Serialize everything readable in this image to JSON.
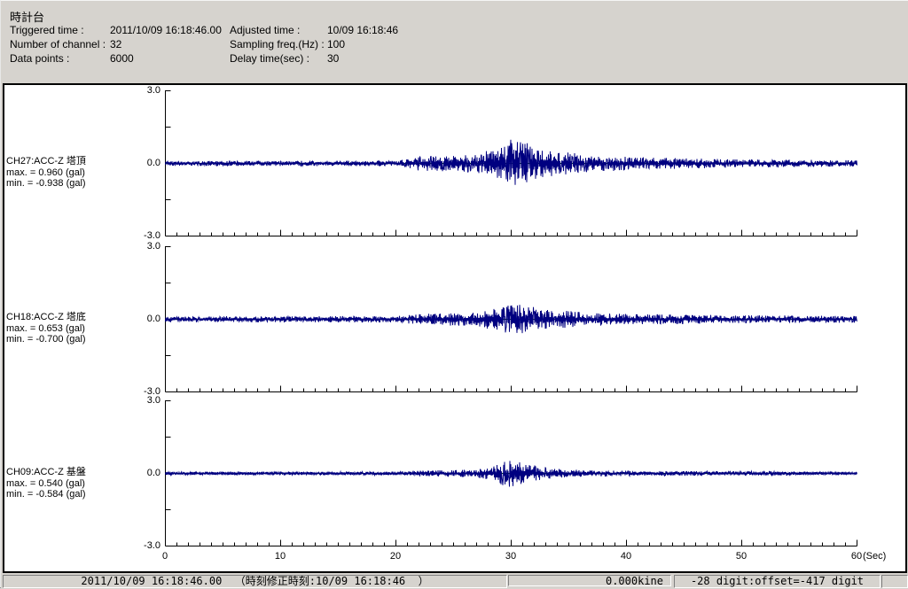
{
  "header": {
    "title": "時計台",
    "rows": [
      {
        "left_label": "Triggered time :",
        "left_value": "2011/10/09 16:18:46.00",
        "right_label": "Adjusted time :",
        "right_value": "10/09 16:18:46"
      },
      {
        "left_label": "Number of channel :",
        "left_value": "32",
        "right_label": "Sampling freq.(Hz) :",
        "right_value": "100"
      },
      {
        "left_label": "Data points :",
        "left_value": "6000",
        "right_label": "Delay time(sec) :",
        "right_value": "30"
      }
    ]
  },
  "chart_data": {
    "type": "line",
    "title": "",
    "xlabel": "(Sec)",
    "ylabel": "(gal)",
    "x_range": [
      0,
      60
    ],
    "x_ticks": [
      0,
      10,
      20,
      30,
      40,
      50,
      60
    ],
    "x_minor_tick_sec": 1,
    "ylim": [
      -3.0,
      3.0
    ],
    "y_tick_values": [
      3.0,
      1.5,
      0.0,
      -1.5,
      -3.0
    ],
    "y_tick_labels": [
      "3.0",
      "0.0",
      "-3.0"
    ],
    "sampling_freq_hz": 100,
    "duration_sec": 60,
    "grid": false,
    "legend_position": "none",
    "series": [
      {
        "channel": "CH27:ACC-Z 塔頂",
        "max_gal": 0.96,
        "min_gal": -0.938,
        "max_label": "max. = 0.960 (gal)",
        "min_label": "min. = -0.938 (gal)",
        "amplitude_envelope_gal": [
          [
            0,
            0.1
          ],
          [
            20,
            0.11
          ],
          [
            21,
            0.18
          ],
          [
            22,
            0.3
          ],
          [
            24,
            0.32
          ],
          [
            26,
            0.35
          ],
          [
            27.5,
            0.45
          ],
          [
            29,
            0.62
          ],
          [
            30,
            0.96
          ],
          [
            31,
            0.88
          ],
          [
            32,
            0.68
          ],
          [
            33,
            0.55
          ],
          [
            35,
            0.45
          ],
          [
            37,
            0.35
          ],
          [
            39,
            0.3
          ],
          [
            42,
            0.24
          ],
          [
            46,
            0.2
          ],
          [
            50,
            0.17
          ],
          [
            55,
            0.15
          ],
          [
            60,
            0.13
          ]
        ],
        "seed": 27
      },
      {
        "channel": "CH18:ACC-Z 塔底",
        "max_gal": 0.653,
        "min_gal": -0.7,
        "max_label": "max. = 0.653 (gal)",
        "min_label": "min. = -0.700 (gal)",
        "amplitude_envelope_gal": [
          [
            0,
            0.12
          ],
          [
            20,
            0.13
          ],
          [
            22,
            0.22
          ],
          [
            25,
            0.25
          ],
          [
            27,
            0.3
          ],
          [
            29,
            0.45
          ],
          [
            30,
            0.7
          ],
          [
            31,
            0.6
          ],
          [
            32,
            0.5
          ],
          [
            34,
            0.38
          ],
          [
            36,
            0.3
          ],
          [
            40,
            0.22
          ],
          [
            45,
            0.18
          ],
          [
            50,
            0.16
          ],
          [
            55,
            0.15
          ],
          [
            60,
            0.14
          ]
        ],
        "seed": 18
      },
      {
        "channel": "CH09:ACC-Z 基盤",
        "max_gal": 0.54,
        "min_gal": -0.584,
        "max_label": "max. = 0.540 (gal)",
        "min_label": "min. = -0.584 (gal)",
        "amplitude_envelope_gal": [
          [
            0,
            0.06
          ],
          [
            20,
            0.07
          ],
          [
            22,
            0.12
          ],
          [
            25,
            0.14
          ],
          [
            27,
            0.18
          ],
          [
            28.5,
            0.3
          ],
          [
            29.5,
            0.58
          ],
          [
            30.5,
            0.55
          ],
          [
            31.5,
            0.4
          ],
          [
            33,
            0.25
          ],
          [
            35,
            0.16
          ],
          [
            38,
            0.12
          ],
          [
            42,
            0.1
          ],
          [
            48,
            0.09
          ],
          [
            55,
            0.08
          ],
          [
            60,
            0.07
          ]
        ],
        "seed": 9
      }
    ]
  },
  "status_bar": {
    "time_text": "2011/10/09 16:18:46.00  （時刻修正時刻:10/09 16:18:46  ）",
    "kine_text": "0.000kine",
    "digit_text": "-28 digit:offset=-417 digit"
  },
  "colors": {
    "waveform": "#000080",
    "zero_line": "#004000",
    "axis": "#000000",
    "panel_bg": "#ffffff",
    "chrome_bg": "#d6d3ce"
  }
}
